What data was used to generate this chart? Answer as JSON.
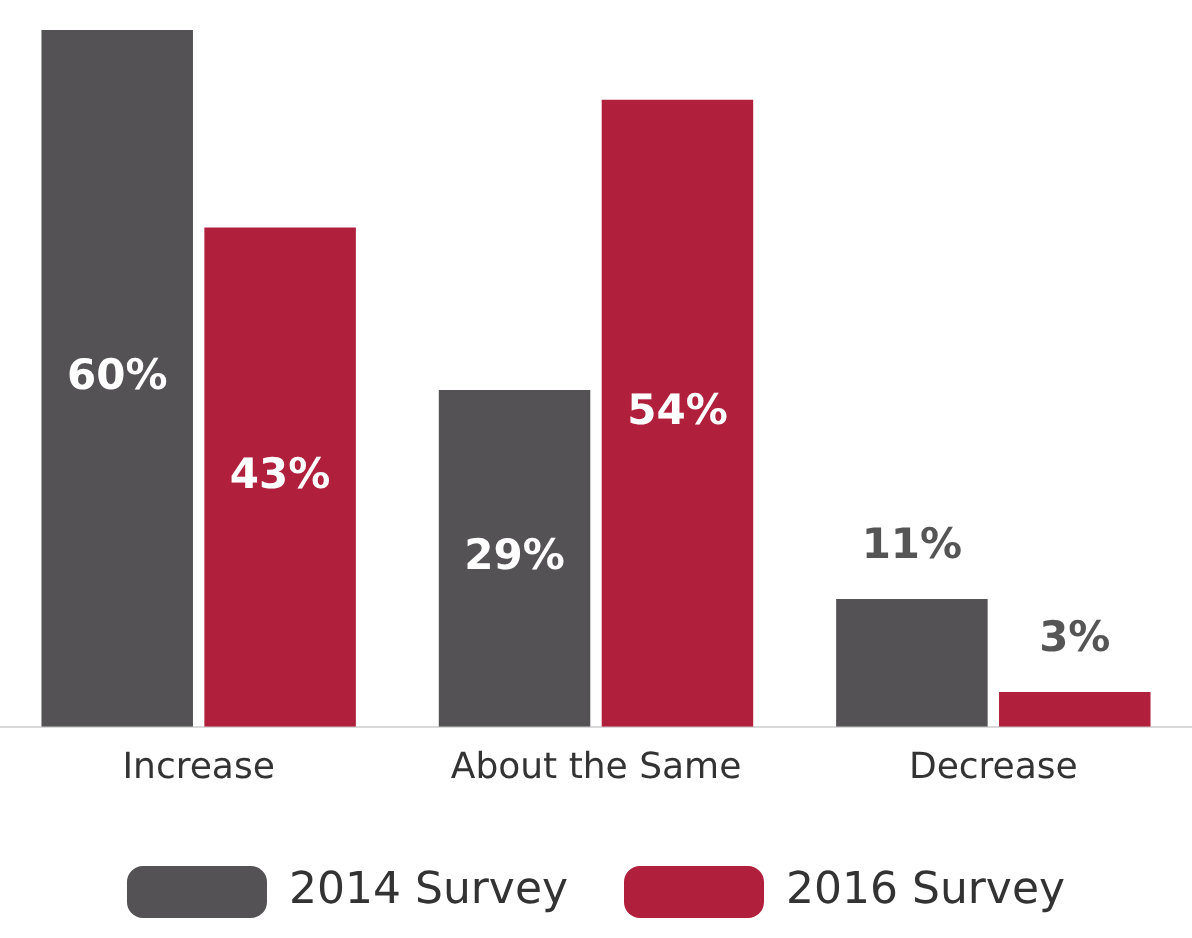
{
  "chart_data": {
    "type": "bar",
    "categories": [
      "Increase",
      "About the Same",
      "Decrease"
    ],
    "series": [
      {
        "name": "2014 Survey",
        "color": "#545254",
        "values": [
          60,
          29,
          11
        ],
        "value_labels": [
          "60%",
          "29%",
          "11%"
        ]
      },
      {
        "name": "2016 Survey",
        "color": "#b01f3b",
        "values": [
          43,
          54,
          3
        ],
        "value_labels": [
          "43%",
          "54%",
          "3%"
        ]
      }
    ],
    "legend": "bottom",
    "grid": false
  }
}
